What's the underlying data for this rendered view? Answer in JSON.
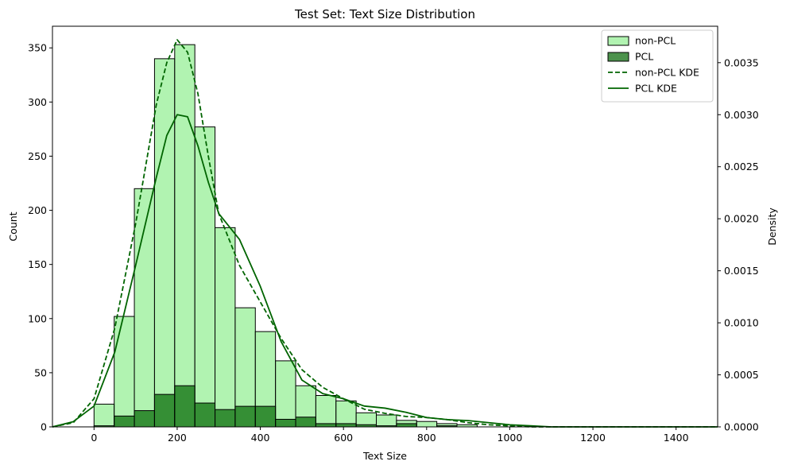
{
  "chart_data": {
    "type": "bar",
    "title": "Test Set: Text Size Distribution",
    "xlabel": "Text Size",
    "ylabel": "Count",
    "y2label": "Density",
    "xlim": [
      -100,
      1500
    ],
    "ylim": [
      0,
      370
    ],
    "y2lim": [
      0,
      0.00385
    ],
    "xticks": [
      "0",
      "200",
      "400",
      "600",
      "800",
      "1000",
      "1200",
      "1400"
    ],
    "xtick_values": [
      0,
      200,
      400,
      600,
      800,
      1000,
      1200,
      1400
    ],
    "yticks": [
      "0",
      "50",
      "100",
      "150",
      "200",
      "250",
      "300",
      "350"
    ],
    "ytick_values": [
      0,
      50,
      100,
      150,
      200,
      250,
      300,
      350
    ],
    "y2ticks": [
      "0.0000",
      "0.0005",
      "0.0010",
      "0.0015",
      "0.0020",
      "0.0025",
      "0.0030",
      "0.0035"
    ],
    "y2tick_values": [
      0,
      0.0005,
      0.001,
      0.0015,
      0.002,
      0.0025,
      0.003,
      0.0035
    ],
    "bin_edges": [
      0,
      48.5,
      97,
      145.5,
      194,
      242.5,
      291,
      339.5,
      388,
      436.5,
      485,
      533.5,
      582,
      630.5,
      679,
      727.5,
      776,
      824.5,
      873,
      921.5
    ],
    "series": [
      {
        "name": "non-PCL",
        "kind": "histogram",
        "color": "#90ee90",
        "edge_color": "#000000",
        "values": [
          21,
          102,
          220,
          340,
          353,
          277,
          184,
          110,
          88,
          61,
          38,
          29,
          24,
          13,
          11,
          6,
          5,
          3,
          2
        ]
      },
      {
        "name": "PCL",
        "kind": "histogram",
        "color": "#006400",
        "edge_color": "#000000",
        "values": [
          1,
          10,
          15,
          30,
          38,
          22,
          16,
          19,
          19,
          7,
          9,
          3,
          3,
          2,
          1,
          3,
          0,
          1,
          0
        ]
      },
      {
        "name": "non-PCL KDE",
        "kind": "kde",
        "line_style": "dashed",
        "color": "#006400",
        "x": [
          -100,
          -50,
          0,
          50,
          100,
          150,
          175,
          200,
          225,
          250,
          275,
          300,
          350,
          400,
          450,
          500,
          550,
          600,
          650,
          700,
          750,
          800,
          850,
          900,
          950,
          1000,
          1050,
          1100,
          1200,
          1300,
          1400,
          1500
        ],
        "y": [
          0.0,
          4e-05,
          0.00027,
          0.00095,
          0.00195,
          0.0031,
          0.0035,
          0.00372,
          0.0036,
          0.0032,
          0.0026,
          0.00205,
          0.00155,
          0.0012,
          0.00085,
          0.00055,
          0.00038,
          0.00027,
          0.00017,
          0.00013,
          0.0001,
          9e-05,
          7e-05,
          4e-05,
          2e-05,
          1e-05,
          0.0,
          0.0,
          0.0,
          0.0,
          0.0,
          0.0
        ]
      },
      {
        "name": "PCL KDE",
        "kind": "kde",
        "line_style": "solid",
        "color": "#006400",
        "x": [
          -100,
          -50,
          0,
          50,
          100,
          150,
          175,
          200,
          225,
          250,
          275,
          300,
          350,
          400,
          450,
          500,
          550,
          600,
          650,
          700,
          750,
          800,
          850,
          900,
          950,
          1000,
          1050,
          1100,
          1200,
          1300,
          1400,
          1500
        ],
        "y": [
          0.0,
          5e-05,
          0.0002,
          0.00072,
          0.00155,
          0.0024,
          0.0028,
          0.003,
          0.00298,
          0.0027,
          0.00235,
          0.00205,
          0.0018,
          0.00135,
          0.00082,
          0.00045,
          0.00032,
          0.00027,
          0.0002,
          0.00018,
          0.00014,
          9e-05,
          7e-05,
          6e-05,
          4e-05,
          2e-05,
          1e-05,
          0.0,
          0.0,
          0.0,
          0.0,
          0.0
        ]
      }
    ],
    "legend": {
      "position": "top-right",
      "entries": [
        {
          "label": "non-PCL",
          "kind": "patch",
          "color": "#90ee90"
        },
        {
          "label": "PCL",
          "kind": "patch",
          "color": "#006400"
        },
        {
          "label": "non-PCL KDE",
          "kind": "line",
          "style": "dashed",
          "color": "#006400"
        },
        {
          "label": "PCL KDE",
          "kind": "line",
          "style": "solid",
          "color": "#006400"
        }
      ]
    },
    "grid": false
  }
}
